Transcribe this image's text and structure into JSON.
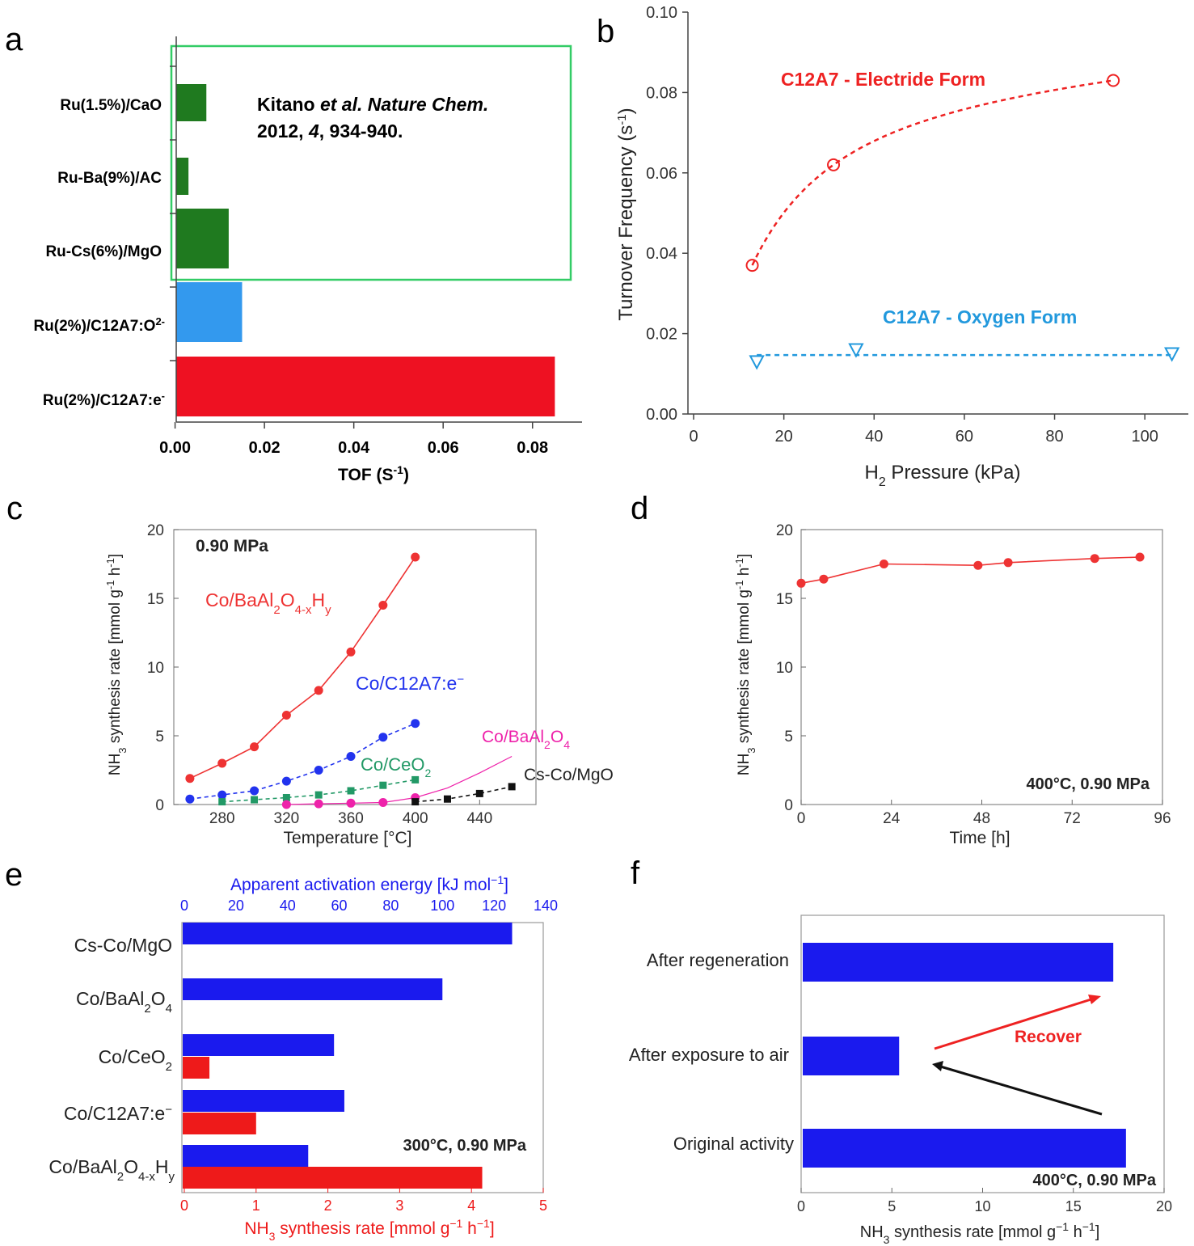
{
  "panels": {
    "a": "a",
    "b": "b",
    "c": "c",
    "d": "d",
    "e": "e",
    "f": "f"
  },
  "colors": {
    "green_bar": "#1f7a1f",
    "blue_bar": "#3399ee",
    "red_bar": "#ee1122",
    "highlight_box": "#33cc66",
    "electride": "#ee2222",
    "oxygen": "#2299dd",
    "co_baalo_h": "#ee3333",
    "co_c12a7": "#2233ee",
    "co_ceo2": "#229966",
    "co_baal2o4": "#ee22aa",
    "cs_co_mgo": "#111111",
    "ea_bar": "#1a1aee",
    "rate_bar": "#ee1a1a",
    "axis_top": "#1a1aee",
    "axis_bottom": "#ee1a1a"
  },
  "chart_data": [
    {
      "panel": "a",
      "type": "bar",
      "orientation": "horizontal",
      "categories": [
        "Ru(1.5%)/CaO",
        "Ru-Ba(9%)/AC",
        "Ru-Cs(6%)/MgO",
        "Ru(2%)/C12A7:O2-",
        "Ru(2%)/C12A7:e-"
      ],
      "values": [
        0.007,
        0.003,
        0.012,
        0.015,
        0.085
      ],
      "xlabel": "TOF (S-1)",
      "xlim": [
        -0.003,
        0.09
      ],
      "xticks": [
        "0.00",
        "0.02",
        "0.04",
        "0.06",
        "0.08"
      ],
      "annotation": {
        "line1_prefix": "Kitano ",
        "line1_italic": "et al.",
        "line1_bold_italic": " Nature Chem.",
        "line2_a": "2012, ",
        "line2_italic": "4",
        "line2_b": ", 934-940."
      }
    },
    {
      "panel": "b",
      "type": "scatter",
      "xlabel": "H2 Pressure (kPa)",
      "ylabel": "Turnover Frequency (s-1)",
      "xlim": [
        0,
        110
      ],
      "ylim": [
        0,
        0.1
      ],
      "xticks": [
        "0",
        "20",
        "40",
        "60",
        "80",
        "100"
      ],
      "yticks": [
        "0.00",
        "0.02",
        "0.04",
        "0.06",
        "0.08",
        "0.10"
      ],
      "series": [
        {
          "name": "C12A7 - Electride Form",
          "x": [
            13,
            31,
            93
          ],
          "y": [
            0.037,
            0.062,
            0.083
          ]
        },
        {
          "name": "C12A7 - Oxygen Form",
          "x": [
            14,
            36,
            106
          ],
          "y": [
            0.013,
            0.016,
            0.015
          ]
        }
      ]
    },
    {
      "panel": "c",
      "type": "line",
      "xlabel": "Temperature [°C]",
      "ylabel": "NH3 synthesis rate [mmol g-1 h-1]",
      "xlim": [
        250,
        475
      ],
      "ylim": [
        0,
        20
      ],
      "xticks": [
        "280",
        "320",
        "360",
        "400",
        "440"
      ],
      "yticks": [
        "0",
        "5",
        "10",
        "15",
        "20"
      ],
      "condition": "0.90 MPa",
      "series": [
        {
          "name": "Co/BaAl2O4-xHy",
          "x": [
            260,
            280,
            300,
            320,
            340,
            360,
            380,
            400
          ],
          "y": [
            1.9,
            3.0,
            4.2,
            6.5,
            8.3,
            11.1,
            14.5,
            18.0
          ]
        },
        {
          "name": "Co/C12A7:e-",
          "x": [
            260,
            280,
            300,
            320,
            340,
            360,
            380,
            400
          ],
          "y": [
            0.4,
            0.7,
            1.0,
            1.7,
            2.5,
            3.5,
            4.9,
            5.9
          ]
        },
        {
          "name": "Co/CeO2",
          "x": [
            280,
            300,
            320,
            340,
            360,
            380,
            400
          ],
          "y": [
            0.2,
            0.35,
            0.5,
            0.7,
            1.0,
            1.4,
            1.8
          ]
        },
        {
          "name": "Co/BaAl2O4",
          "x": [
            320,
            340,
            360,
            380,
            400,
            420,
            440,
            460
          ],
          "y": [
            0.0,
            0.05,
            0.1,
            0.15,
            0.5,
            1.2,
            2.3,
            3.5
          ]
        },
        {
          "name": "Cs-Co/MgO",
          "x": [
            400,
            420,
            440,
            460
          ],
          "y": [
            0.2,
            0.4,
            0.8,
            1.3
          ]
        }
      ]
    },
    {
      "panel": "d",
      "type": "line",
      "xlabel": "Time [h]",
      "ylabel": "NH3 synthesis rate [mmol g-1 h-1]",
      "xlim": [
        0,
        96
      ],
      "ylim": [
        0,
        20
      ],
      "xticks": [
        "0",
        "24",
        "48",
        "72",
        "96"
      ],
      "yticks": [
        "0",
        "5",
        "10",
        "15",
        "20"
      ],
      "condition": "400°C, 0.90 MPa",
      "series": [
        {
          "x": [
            0,
            6,
            22,
            47,
            55,
            78,
            90
          ],
          "y": [
            16.1,
            16.4,
            17.5,
            17.4,
            17.6,
            17.9,
            18.0
          ]
        }
      ]
    },
    {
      "panel": "e",
      "type": "bar",
      "orientation": "horizontal",
      "categories": [
        "Cs-Co/MgO",
        "Co/BaAl2O4",
        "Co/CeO2",
        "Co/C12A7:e-",
        "Co/BaAl2O4-xHy"
      ],
      "top_axis_label": "Apparent activation energy [kJ mol-1]",
      "top_xlim": [
        0,
        140
      ],
      "top_xticks": [
        "0",
        "20",
        "40",
        "60",
        "80",
        "100",
        "120",
        "140"
      ],
      "bottom_axis_label": "NH3 synthesis rate [mmol g-1 h-1]",
      "bottom_xlim": [
        0,
        5
      ],
      "bottom_xticks": [
        "0",
        "1",
        "2",
        "3",
        "4",
        "5"
      ],
      "condition": "300°C, 0.90 MPa",
      "series": [
        {
          "name": "Apparent activation energy",
          "values": [
            127,
            100,
            58,
            62,
            48
          ]
        },
        {
          "name": "NH3 synthesis rate",
          "values": [
            null,
            null,
            0.35,
            1.0,
            4.15
          ]
        }
      ]
    },
    {
      "panel": "f",
      "type": "bar",
      "orientation": "horizontal",
      "categories": [
        "After regeneration",
        "After exposure to air",
        "Original activity"
      ],
      "values": [
        17.2,
        5.4,
        17.9
      ],
      "xlabel": "NH3 synthesis rate [mmol g-1 h-1]",
      "xlim": [
        0,
        20
      ],
      "xticks": [
        "0",
        "5",
        "10",
        "15",
        "20"
      ],
      "condition": "400°C, 0.90 MPa",
      "annotation": "Recover"
    }
  ]
}
